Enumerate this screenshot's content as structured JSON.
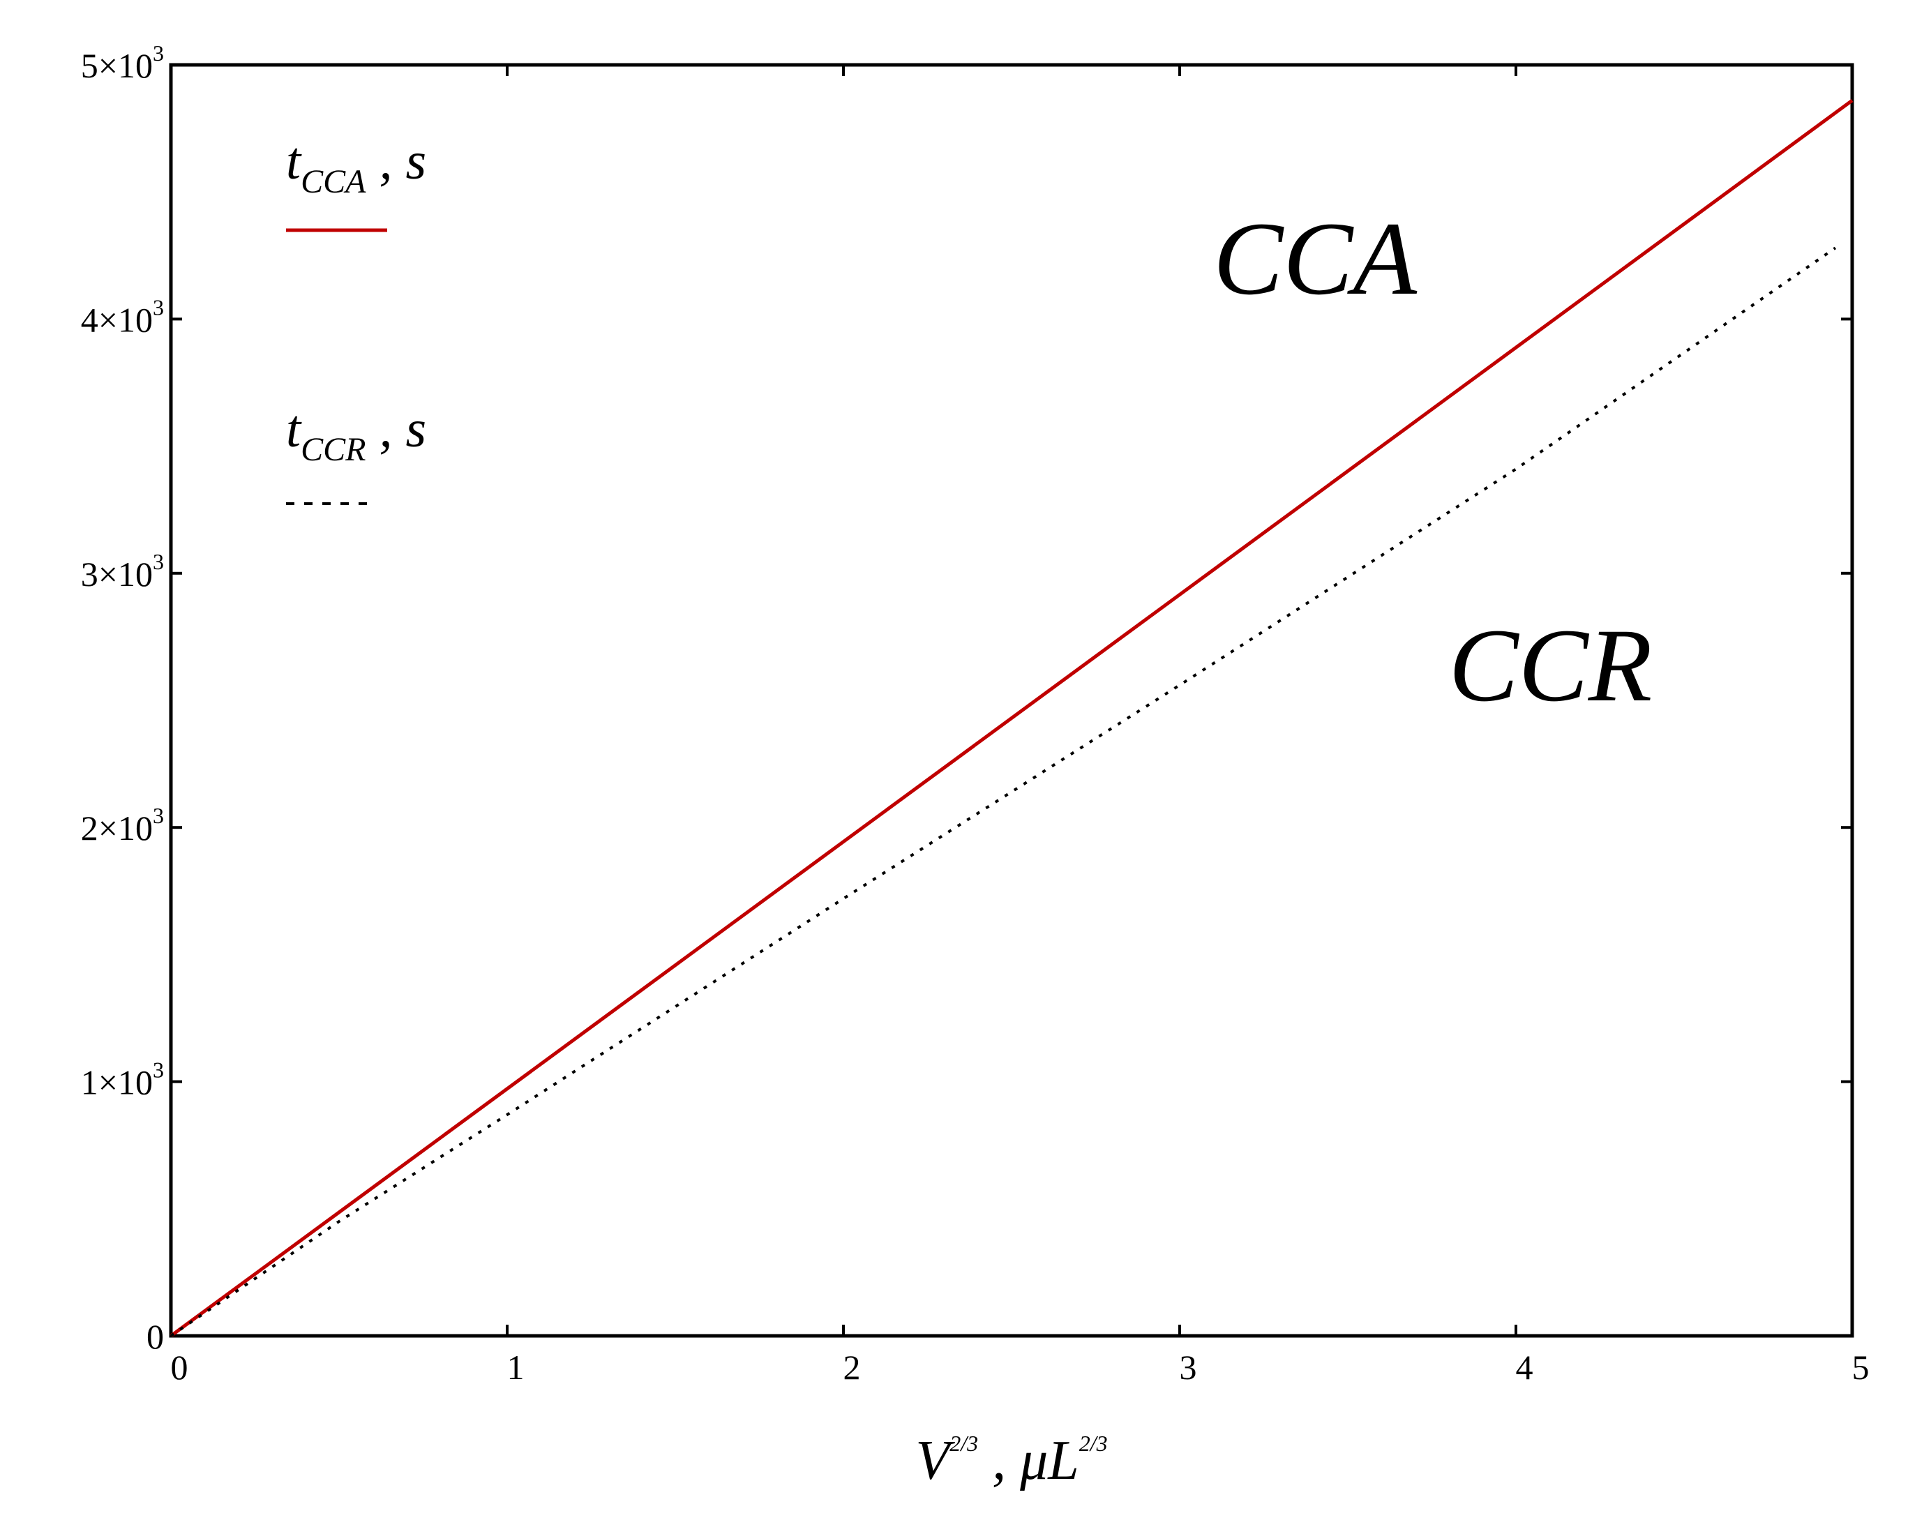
{
  "chart_data": {
    "type": "line",
    "xlim": [
      0,
      5
    ],
    "ylim": [
      0,
      5000
    ],
    "x_ticks": [
      {
        "value": 0,
        "label": "0"
      },
      {
        "value": 1,
        "label": "1"
      },
      {
        "value": 2,
        "label": "2"
      },
      {
        "value": 3,
        "label": "3"
      },
      {
        "value": 4,
        "label": "4"
      },
      {
        "value": 5,
        "label": "5"
      }
    ],
    "y_ticks": [
      {
        "value": 0,
        "mantissa": "0",
        "base": "",
        "exp": ""
      },
      {
        "value": 1000,
        "mantissa": "1",
        "base": "×10",
        "exp": "3"
      },
      {
        "value": 2000,
        "mantissa": "2",
        "base": "×10",
        "exp": "3"
      },
      {
        "value": 3000,
        "mantissa": "3",
        "base": "×10",
        "exp": "3"
      },
      {
        "value": 4000,
        "mantissa": "4",
        "base": "×10",
        "exp": "3"
      },
      {
        "value": 5000,
        "mantissa": "5",
        "base": "×10",
        "exp": "3"
      }
    ],
    "xlabel": {
      "base": "V",
      "exp": "2/3",
      "sep": " , ",
      "unit": "μL",
      "unit_exp": "2/3"
    },
    "grid": false,
    "legend_position": "top-left",
    "series": [
      {
        "name": "t_CCA , s",
        "legend": {
          "symbol": "t",
          "subscript": "CCA",
          "unit": " ,  s"
        },
        "color": "#c00000",
        "style": "solid",
        "x": [
          0,
          5
        ],
        "y": [
          0,
          4860
        ]
      },
      {
        "name": "t_CCR , s",
        "legend": {
          "symbol": "t",
          "subscript": "CCR",
          "unit": " ,  s"
        },
        "color": "#000000",
        "style": "dotted",
        "x": [
          0,
          0.5,
          1,
          2,
          3,
          4,
          4.95
        ],
        "y": [
          0,
          450,
          870,
          1720,
          2560,
          3410,
          4280
        ]
      }
    ],
    "annotations": [
      {
        "text": "CCA",
        "x": 3.1,
        "y": 4100
      },
      {
        "text": "CCR",
        "x": 3.8,
        "y": 2500
      }
    ]
  }
}
